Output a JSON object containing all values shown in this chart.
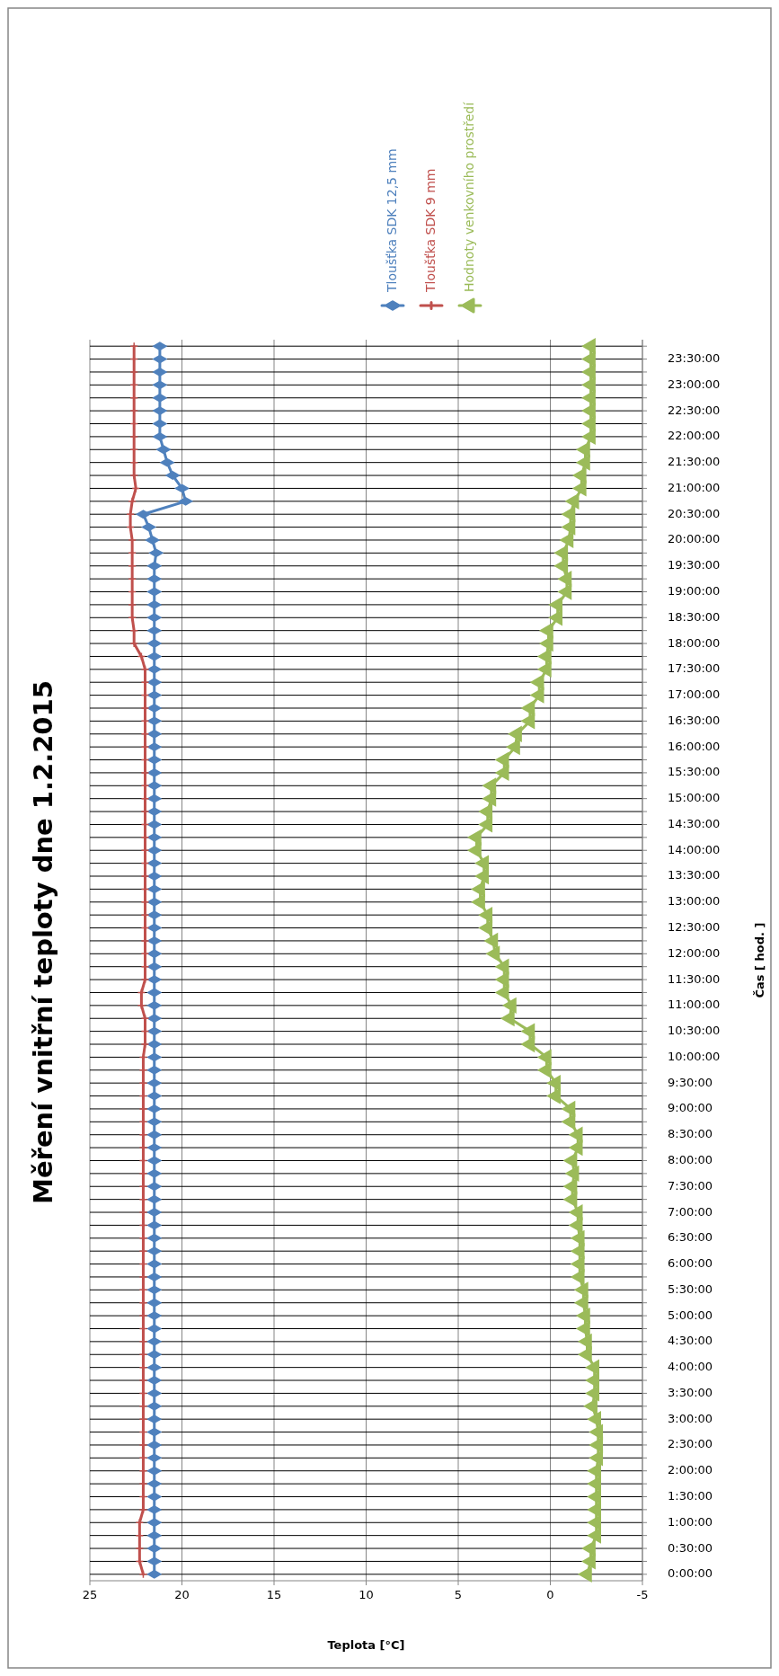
{
  "chart_data": {
    "type": "line",
    "orientation": "horizontal",
    "title": "Měření vnitřní teploty dne 1.2.2015",
    "xlabel": "Teplota  [°C]",
    "ylabel": "Čas  [ hod. ]",
    "categories": [
      null,
      "23:30:00",
      null,
      "23:00:00",
      null,
      "22:30:00",
      null,
      "22:00:00",
      null,
      "21:30:00",
      null,
      "21:00:00",
      null,
      "20:30:00",
      null,
      "20:00:00",
      null,
      "19:30:00",
      null,
      "19:00:00",
      null,
      "18:30:00",
      null,
      "18:00:00",
      null,
      "17:30:00",
      null,
      "17:00:00",
      null,
      "16:30:00",
      null,
      "16:00:00",
      null,
      "15:30:00",
      null,
      "15:00:00",
      null,
      "14:30:00",
      null,
      "14:00:00",
      null,
      "13:30:00",
      null,
      "13:00:00",
      null,
      "12:30:00",
      null,
      "12:00:00",
      null,
      "11:30:00",
      null,
      "11:00:00",
      null,
      "10:30:00",
      null,
      "10:00:00",
      null,
      "9:30:00",
      null,
      "9:00:00",
      null,
      "8:30:00",
      null,
      "8:00:00",
      null,
      "7:30:00",
      null,
      "7:00:00",
      null,
      "6:30:00",
      null,
      "6:00:00",
      null,
      "5:30:00",
      null,
      "5:00:00",
      null,
      "4:30:00",
      null,
      "4:00:00",
      null,
      "3:30:00",
      null,
      "3:00:00",
      null,
      "2:30:00",
      null,
      "2:00:00",
      null,
      "1:30:00",
      null,
      "1:00:00",
      null,
      "0:30:00",
      null,
      "0:00:00"
    ],
    "series": [
      {
        "name": "Tloušťka SDK 12,5 mm",
        "color": "#4f81bd",
        "marker": "diamond",
        "values": [
          21.2,
          21.2,
          21.2,
          21.2,
          21.2,
          21.2,
          21.2,
          21.2,
          21.0,
          20.8,
          20.5,
          20.0,
          19.8,
          22.1,
          21.8,
          21.6,
          21.4,
          21.5,
          21.5,
          21.5,
          21.5,
          21.5,
          21.5,
          21.5,
          21.5,
          21.5,
          21.5,
          21.5,
          21.5,
          21.5,
          21.5,
          21.5,
          21.5,
          21.5,
          21.5,
          21.5,
          21.5,
          21.5,
          21.5,
          21.5,
          21.5,
          21.5,
          21.5,
          21.5,
          21.5,
          21.5,
          21.5,
          21.5,
          21.5,
          21.5,
          21.5,
          21.5,
          21.5,
          21.5,
          21.5,
          21.5,
          21.5,
          21.5,
          21.5,
          21.5,
          21.5,
          21.5,
          21.5,
          21.5,
          21.5,
          21.5,
          21.5,
          21.5,
          21.5,
          21.5,
          21.5,
          21.5,
          21.5,
          21.5,
          21.5,
          21.5,
          21.5,
          21.5,
          21.5,
          21.5,
          21.5,
          21.5,
          21.5,
          21.5,
          21.5,
          21.5,
          21.5,
          21.5,
          21.5,
          21.5,
          21.5,
          21.5,
          21.5,
          21.5,
          21.5,
          21.5
        ]
      },
      {
        "name": "Tloušťka SDK 9 mm",
        "color": "#c0504d",
        "marker": "cross",
        "values": [
          22.6,
          22.6,
          22.6,
          22.6,
          22.6,
          22.6,
          22.6,
          22.6,
          22.6,
          22.6,
          22.6,
          22.5,
          22.7,
          22.8,
          22.8,
          22.7,
          22.7,
          22.7,
          22.7,
          22.7,
          22.7,
          22.7,
          22.6,
          22.6,
          22.2,
          22.0,
          22.0,
          22.0,
          22.0,
          22.0,
          22.0,
          22.0,
          22.0,
          22.0,
          22.0,
          22.0,
          22.0,
          22.0,
          22.0,
          22.0,
          22.0,
          22.0,
          22.0,
          22.0,
          22.0,
          22.0,
          22.0,
          22.0,
          22.0,
          22.0,
          22.2,
          22.2,
          22.0,
          22.0,
          22.0,
          22.1,
          22.1,
          22.1,
          22.1,
          22.1,
          22.1,
          22.1,
          22.1,
          22.1,
          22.1,
          22.1,
          22.1,
          22.1,
          22.1,
          22.1,
          22.1,
          22.1,
          22.1,
          22.1,
          22.1,
          22.1,
          22.1,
          22.1,
          22.1,
          22.1,
          22.1,
          22.1,
          22.1,
          22.1,
          22.1,
          22.1,
          22.1,
          22.1,
          22.1,
          22.1,
          22.1,
          22.3,
          22.3,
          22.3,
          22.3,
          22.1
        ]
      },
      {
        "name": "Hodnoty venkovního prostředí",
        "color": "#9bbb59",
        "marker": "triangle",
        "values": [
          -2.2,
          -2.2,
          -2.2,
          -2.2,
          -2.2,
          -2.2,
          -2.2,
          -2.2,
          -1.9,
          -1.9,
          -1.7,
          -1.7,
          -1.3,
          -1.1,
          -1.1,
          -1.0,
          -0.7,
          -0.7,
          -0.9,
          -0.9,
          -0.4,
          -0.4,
          0.1,
          0.1,
          0.2,
          0.2,
          0.6,
          0.6,
          1.1,
          1.1,
          1.8,
          1.9,
          2.5,
          2.5,
          3.2,
          3.2,
          3.4,
          3.4,
          4.0,
          4.0,
          3.6,
          3.6,
          3.8,
          3.8,
          3.4,
          3.4,
          3.1,
          3.0,
          2.5,
          2.5,
          2.5,
          2.1,
          2.2,
          1.1,
          1.1,
          0.2,
          0.2,
          -0.3,
          -0.3,
          -1.1,
          -1.1,
          -1.5,
          -1.5,
          -1.2,
          -1.3,
          -1.2,
          -1.2,
          -1.5,
          -1.5,
          -1.6,
          -1.6,
          -1.6,
          -1.6,
          -1.8,
          -1.8,
          -1.9,
          -1.9,
          -2.0,
          -2.0,
          -2.4,
          -2.4,
          -2.4,
          -2.3,
          -2.5,
          -2.6,
          -2.6,
          -2.6,
          -2.5,
          -2.5,
          -2.5,
          -2.5,
          -2.5,
          -2.5,
          -2.2,
          -2.2,
          -2.0
        ]
      }
    ],
    "xlim": [
      25,
      -5
    ],
    "xticks": [
      25,
      20,
      15,
      10,
      5,
      0,
      -5
    ],
    "grid": true,
    "legend": "right",
    "line_style": "solid"
  }
}
